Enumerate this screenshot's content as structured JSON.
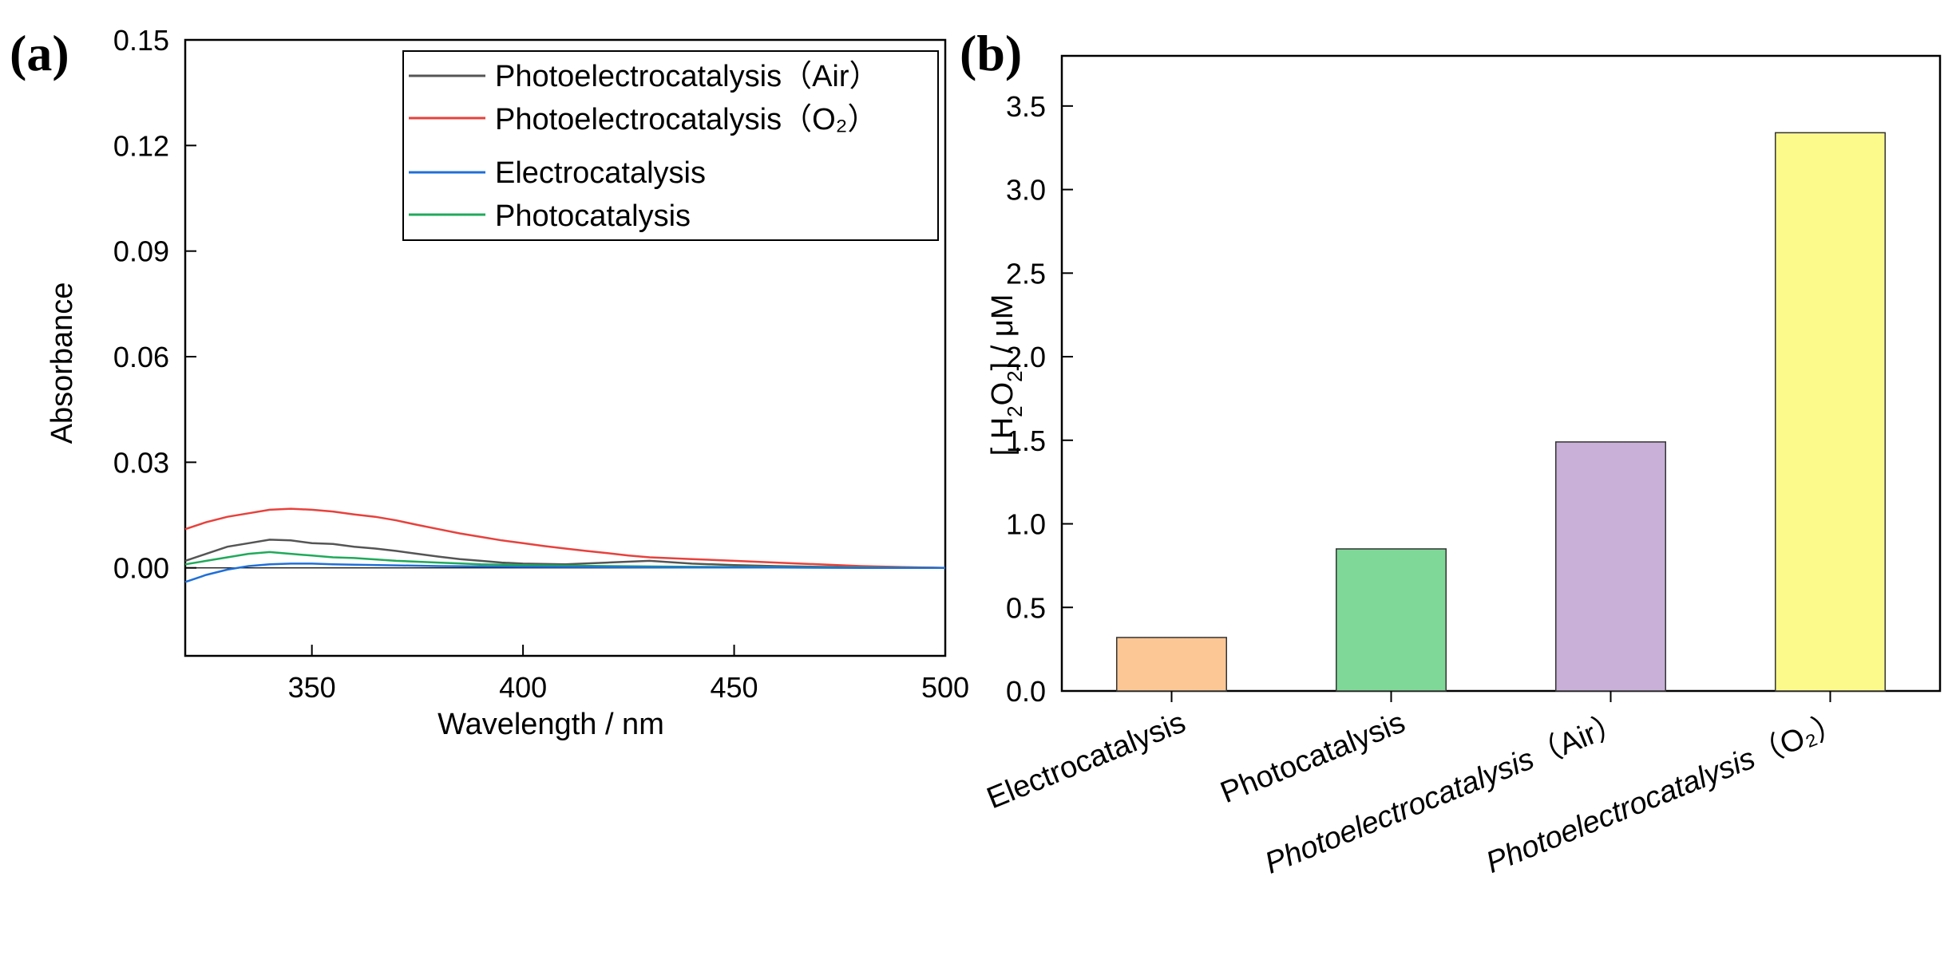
{
  "chart_data": [
    {
      "type": "line",
      "panel": "(a)",
      "xlabel": "Wavelength / nm",
      "ylabel": "Absorbance",
      "xlim": [
        320,
        500
      ],
      "ylim": [
        -0.025,
        0.15
      ],
      "xticks": [
        350,
        400,
        450,
        500
      ],
      "yticks": [
        0.0,
        0.03,
        0.06,
        0.09,
        0.12,
        0.15
      ],
      "legend_position": "top-right",
      "series": [
        {
          "name": "Photoelectrocatalysis（Air）",
          "color": "#555555",
          "x": [
            320,
            325,
            330,
            335,
            340,
            345,
            350,
            355,
            360,
            365,
            370,
            375,
            380,
            385,
            390,
            395,
            400,
            410,
            420,
            430,
            440,
            450,
            460,
            470,
            480,
            490,
            500
          ],
          "y": [
            0.002,
            0.004,
            0.006,
            0.007,
            0.008,
            0.0078,
            0.007,
            0.0068,
            0.006,
            0.0055,
            0.0048,
            0.004,
            0.0032,
            0.0025,
            0.002,
            0.0015,
            0.0012,
            0.001,
            0.0015,
            0.002,
            0.0012,
            0.0008,
            0.0005,
            0.0003,
            0.0002,
            0.0001,
            0.0
          ]
        },
        {
          "name": "Photoelectrocatalysis（O₂）",
          "color": "#e8413c",
          "x": [
            320,
            325,
            330,
            335,
            340,
            345,
            350,
            355,
            360,
            365,
            370,
            375,
            380,
            385,
            390,
            395,
            400,
            405,
            410,
            415,
            420,
            425,
            430,
            440,
            450,
            460,
            470,
            480,
            490,
            500
          ],
          "y": [
            0.011,
            0.013,
            0.0145,
            0.0155,
            0.0165,
            0.0168,
            0.0165,
            0.016,
            0.0152,
            0.0145,
            0.0135,
            0.0122,
            0.011,
            0.0098,
            0.0088,
            0.0078,
            0.007,
            0.0062,
            0.0055,
            0.0048,
            0.0042,
            0.0035,
            0.003,
            0.0025,
            0.002,
            0.0015,
            0.001,
            0.0005,
            0.0002,
            0.0
          ]
        },
        {
          "name": "Electrocatalysis",
          "color": "#1f6fd8",
          "x": [
            320,
            325,
            330,
            335,
            340,
            345,
            350,
            355,
            360,
            370,
            380,
            390,
            400,
            420,
            440,
            460,
            480,
            500
          ],
          "y": [
            -0.004,
            -0.002,
            -0.0005,
            0.0005,
            0.001,
            0.0012,
            0.0012,
            0.001,
            0.0009,
            0.0007,
            0.0005,
            0.0004,
            0.0003,
            0.0002,
            0.0001,
            0.0001,
            0.0,
            0.0
          ]
        },
        {
          "name": "Photocatalysis",
          "color": "#1faa5a",
          "x": [
            320,
            325,
            330,
            335,
            340,
            345,
            350,
            355,
            360,
            365,
            370,
            380,
            390,
            400,
            420,
            440,
            460,
            480,
            500
          ],
          "y": [
            0.001,
            0.002,
            0.003,
            0.004,
            0.0045,
            0.004,
            0.0035,
            0.003,
            0.0028,
            0.0024,
            0.002,
            0.0015,
            0.001,
            0.0008,
            0.0005,
            0.0003,
            0.0002,
            0.0001,
            0.0
          ]
        }
      ]
    },
    {
      "type": "bar",
      "panel": "(b)",
      "ylabel_parts": [
        "[ H",
        "2",
        "O",
        "2",
        "] / μM"
      ],
      "ylim": [
        0,
        3.8
      ],
      "yticks": [
        0.0,
        0.5,
        1.0,
        1.5,
        2.0,
        2.5,
        3.0,
        3.5
      ],
      "categories": [
        {
          "label": "Electrocatalysis",
          "italic": false
        },
        {
          "label": "Photocatalysis",
          "italic": false
        },
        {
          "label_italic": "Photoelectrocatalysis",
          "label_suffix": "（Air）",
          "italic": true
        },
        {
          "label_italic": "Photoelectrocatalysis",
          "label_suffix": "（O₂）",
          "italic": true
        }
      ],
      "values": [
        0.32,
        0.85,
        1.49,
        3.34
      ],
      "colors": [
        "#fcc795",
        "#7fd897",
        "#c8b0d8",
        "#fdfa8c"
      ]
    }
  ]
}
